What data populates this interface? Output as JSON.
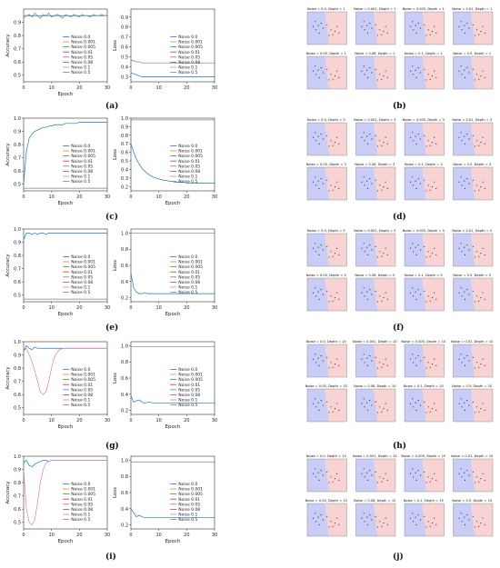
{
  "labels": [
    "(a)",
    "(b)",
    "(c)",
    "(d)",
    "(e)",
    "(f)",
    "(g)",
    "(h)",
    "(i)",
    "(j)"
  ],
  "legend": [
    "Noise 0.0",
    "Noise 0.001",
    "Noise 0.005",
    "Noise 0.01",
    "Noise 0.05",
    "Noise 0.08",
    "Noise 0.1",
    "Noise 0.5"
  ],
  "colors": [
    "#1f77b4",
    "#ff7f0e",
    "#2ca02c",
    "#d62728",
    "#9467bd",
    "#8c564b",
    "#e377c2",
    "#7f7f7f"
  ],
  "grid_depths": [
    1,
    3,
    5,
    10,
    15
  ],
  "grid_noises": [
    "0.0",
    "0.001",
    "0.005",
    "0.01",
    "0.05",
    "0.08",
    "0.1",
    "0.5"
  ],
  "chart_data": [
    {
      "id": "a",
      "type": "line",
      "xlabel": "Epoch",
      "ylabel": "Accuracy",
      "xlim": [
        0,
        30
      ],
      "ylim": [
        0.45,
        1.0
      ],
      "yticks": [
        0.5,
        0.6,
        0.7,
        0.8,
        0.9
      ],
      "xticks": [
        0,
        10,
        20,
        30
      ],
      "series": [
        {
          "name": "Noise 0.0",
          "values": [
            0.95,
            0.95,
            0.95,
            0.95,
            0.95,
            0.95,
            0.95,
            0.95,
            0.95,
            0.95,
            0.95,
            0.95,
            0.95,
            0.95,
            0.95,
            0.95,
            0.95,
            0.95,
            0.95,
            0.95,
            0.95,
            0.95,
            0.95,
            0.95,
            0.95,
            0.95,
            0.95,
            0.95,
            0.95,
            0.95,
            0.95
          ]
        },
        {
          "name": "Noise 0.5",
          "values": [
            0.93,
            0.95,
            0.96,
            0.94,
            0.97,
            0.95,
            0.93,
            0.96,
            0.95,
            0.97,
            0.94,
            0.95,
            0.96,
            0.95,
            0.93,
            0.96,
            0.95,
            0.94,
            0.96,
            0.95,
            0.94,
            0.96,
            0.95,
            0.95,
            0.94,
            0.96,
            0.95,
            0.95,
            0.96,
            0.95,
            0.95
          ]
        }
      ]
    },
    {
      "id": "b",
      "type": "line",
      "xlabel": "",
      "ylabel": "Loss",
      "xlim": [
        0,
        30
      ],
      "ylim": [
        0.25,
        0.98
      ],
      "yticks": [
        0.3,
        0.4,
        0.5,
        0.6,
        0.7,
        0.8,
        0.9
      ],
      "xticks": [
        0,
        10,
        20,
        30
      ],
      "series": [
        {
          "name": "Noise 0.0",
          "values": [
            0.34,
            0.33,
            0.32,
            0.31,
            0.3,
            0.3,
            0.3,
            0.3,
            0.3,
            0.3,
            0.3,
            0.3,
            0.3,
            0.3,
            0.3,
            0.3,
            0.3,
            0.3,
            0.3,
            0.3,
            0.3,
            0.3,
            0.3,
            0.3,
            0.3,
            0.3,
            0.3,
            0.3,
            0.3,
            0.3,
            0.3
          ]
        },
        {
          "name": "Noise 0.5",
          "values": [
            0.47,
            0.46,
            0.45,
            0.45,
            0.44,
            0.44,
            0.44,
            0.44,
            0.44,
            0.44,
            0.44,
            0.44,
            0.44,
            0.44,
            0.44,
            0.44,
            0.44,
            0.44,
            0.44,
            0.44,
            0.44,
            0.44,
            0.44,
            0.44,
            0.44,
            0.44,
            0.44,
            0.44,
            0.44,
            0.44,
            0.44
          ]
        }
      ]
    },
    {
      "id": "c",
      "type": "line",
      "xlabel": "Epoch",
      "ylabel": "Accuracy",
      "xlim": [
        0,
        30
      ],
      "ylim": [
        0.45,
        1.0
      ],
      "yticks": [
        0.5,
        0.6,
        0.7,
        0.8,
        0.9,
        1.0
      ],
      "xticks": [
        0,
        10,
        20,
        30
      ],
      "series": [
        {
          "name": "Noise 0.0",
          "values": [
            0.5,
            0.75,
            0.85,
            0.88,
            0.9,
            0.91,
            0.92,
            0.93,
            0.93,
            0.94,
            0.94,
            0.95,
            0.95,
            0.95,
            0.95,
            0.96,
            0.96,
            0.96,
            0.96,
            0.96,
            0.97,
            0.97,
            0.97,
            0.97,
            0.97,
            0.97,
            0.97,
            0.97,
            0.97,
            0.97,
            0.97
          ]
        },
        {
          "name": "Noise 0.5",
          "values": [
            0.47,
            0.47,
            0.47,
            0.47,
            0.47,
            0.47,
            0.47,
            0.47,
            0.47,
            0.47,
            0.47,
            0.47,
            0.47,
            0.47,
            0.47,
            0.47,
            0.47,
            0.47,
            0.47,
            0.47,
            0.47,
            0.47,
            0.47,
            0.47,
            0.47,
            0.47,
            0.47,
            0.47,
            0.47,
            0.47,
            0.47
          ]
        }
      ]
    },
    {
      "id": "d",
      "type": "line",
      "xlabel": "Epoch",
      "ylabel": "Loss",
      "xlim": [
        0,
        30
      ],
      "ylim": [
        0.15,
        1.0
      ],
      "yticks": [
        0.2,
        0.3,
        0.4,
        0.5,
        0.6,
        0.7,
        0.8,
        0.9,
        1.0
      ],
      "xticks": [
        0,
        10,
        20,
        30
      ],
      "series": [
        {
          "name": "Noise 0.0",
          "values": [
            0.7,
            0.6,
            0.52,
            0.46,
            0.41,
            0.38,
            0.35,
            0.33,
            0.31,
            0.3,
            0.29,
            0.28,
            0.27,
            0.27,
            0.26,
            0.26,
            0.25,
            0.25,
            0.25,
            0.25,
            0.24,
            0.24,
            0.24,
            0.24,
            0.24,
            0.24,
            0.24,
            0.24,
            0.24,
            0.24,
            0.24
          ]
        },
        {
          "name": "Noise 0.5",
          "values": [
            0.98,
            0.98,
            0.98,
            0.98,
            0.98,
            0.98,
            0.98,
            0.98,
            0.98,
            0.98,
            0.98,
            0.98,
            0.98,
            0.98,
            0.98,
            0.98,
            0.98,
            0.98,
            0.98,
            0.98,
            0.98,
            0.98,
            0.98,
            0.98,
            0.98,
            0.98,
            0.98,
            0.98,
            0.98,
            0.98,
            0.98
          ]
        }
      ]
    },
    {
      "id": "e",
      "type": "line",
      "xlabel": "Epoch",
      "ylabel": "Accuracy",
      "xlim": [
        0,
        30
      ],
      "ylim": [
        0.45,
        1.0
      ],
      "yticks": [
        0.5,
        0.6,
        0.7,
        0.8,
        0.9,
        1.0
      ],
      "xticks": [
        0,
        10,
        20,
        30
      ],
      "series": [
        {
          "name": "Noise 0.0",
          "values": [
            0.92,
            0.97,
            0.97,
            0.96,
            0.97,
            0.96,
            0.97,
            0.97,
            0.96,
            0.97,
            0.97,
            0.97,
            0.97,
            0.97,
            0.97,
            0.97,
            0.97,
            0.97,
            0.97,
            0.97,
            0.97,
            0.97,
            0.97,
            0.97,
            0.97,
            0.97,
            0.97,
            0.97,
            0.97,
            0.97,
            0.97
          ]
        },
        {
          "name": "Noise 0.5",
          "values": [
            0.47,
            0.47,
            0.47,
            0.47,
            0.47,
            0.47,
            0.47,
            0.47,
            0.47,
            0.47,
            0.47,
            0.47,
            0.47,
            0.47,
            0.47,
            0.47,
            0.47,
            0.47,
            0.47,
            0.47,
            0.47,
            0.47,
            0.47,
            0.47,
            0.47,
            0.47,
            0.47,
            0.47,
            0.47,
            0.47,
            0.47
          ]
        }
      ]
    },
    {
      "id": "f",
      "type": "line",
      "xlabel": "Epoch",
      "ylabel": "Loss",
      "xlim": [
        0,
        30
      ],
      "ylim": [
        0.15,
        1.05
      ],
      "yticks": [
        0.2,
        0.4,
        0.6,
        0.8,
        1.0
      ],
      "xticks": [
        0,
        10,
        20,
        30
      ],
      "series": [
        {
          "name": "Noise 0.0",
          "values": [
            0.5,
            0.32,
            0.27,
            0.25,
            0.25,
            0.26,
            0.25,
            0.25,
            0.25,
            0.25,
            0.25,
            0.25,
            0.25,
            0.25,
            0.25,
            0.25,
            0.25,
            0.25,
            0.25,
            0.25,
            0.25,
            0.25,
            0.25,
            0.25,
            0.25,
            0.25,
            0.25,
            0.25,
            0.25,
            0.25,
            0.25
          ]
        },
        {
          "name": "Noise 0.5",
          "values": [
            1.0,
            1.0,
            1.0,
            1.0,
            1.0,
            1.0,
            1.0,
            1.0,
            1.0,
            1.0,
            1.0,
            1.0,
            1.0,
            1.0,
            1.0,
            1.0,
            1.0,
            1.0,
            1.0,
            1.0,
            1.0,
            1.0,
            1.0,
            1.0,
            1.0,
            1.0,
            1.0,
            1.0,
            1.0,
            1.0,
            1.0
          ]
        }
      ]
    },
    {
      "id": "g",
      "type": "line",
      "xlabel": "Epoch",
      "ylabel": "Accuracy",
      "xlim": [
        0,
        30
      ],
      "ylim": [
        0.45,
        1.0
      ],
      "yticks": [
        0.5,
        0.6,
        0.7,
        0.8,
        0.9,
        1.0
      ],
      "xticks": [
        0,
        10,
        20,
        30
      ],
      "series": [
        {
          "name": "Noise 0.0",
          "values": [
            0.93,
            0.97,
            0.95,
            0.94,
            0.96,
            0.95,
            0.95,
            0.95,
            0.95,
            0.95,
            0.95,
            0.95,
            0.95,
            0.95,
            0.95,
            0.95,
            0.95,
            0.95,
            0.95,
            0.95,
            0.95,
            0.95,
            0.95,
            0.95,
            0.95,
            0.95,
            0.95,
            0.95,
            0.95,
            0.95,
            0.95
          ]
        },
        {
          "name": "Noise 0.1",
          "values": [
            0.93,
            0.95,
            0.9,
            0.85,
            0.78,
            0.7,
            0.62,
            0.6,
            0.62,
            0.7,
            0.8,
            0.88,
            0.92,
            0.94,
            0.95,
            0.95,
            0.95,
            0.95,
            0.95,
            0.95,
            0.95,
            0.95,
            0.95,
            0.95,
            0.95,
            0.95,
            0.95,
            0.95,
            0.95,
            0.95,
            0.95
          ]
        }
      ]
    },
    {
      "id": "h",
      "type": "line",
      "xlabel": "Epoch",
      "ylabel": "Loss",
      "xlim": [
        0,
        30
      ],
      "ylim": [
        0.15,
        1.05
      ],
      "yticks": [
        0.2,
        0.4,
        0.6,
        0.8,
        1.0
      ],
      "xticks": [
        0,
        10,
        20,
        30
      ],
      "series": [
        {
          "name": "Noise 0.0",
          "values": [
            0.38,
            0.3,
            0.32,
            0.33,
            0.3,
            0.29,
            0.3,
            0.3,
            0.29,
            0.29,
            0.29,
            0.29,
            0.29,
            0.29,
            0.29,
            0.29,
            0.29,
            0.29,
            0.29,
            0.29,
            0.29,
            0.29,
            0.29,
            0.29,
            0.29,
            0.29,
            0.29,
            0.29,
            0.29,
            0.29,
            0.29
          ]
        },
        {
          "name": "Noise 0.5",
          "values": [
            0.99,
            0.99,
            0.99,
            0.99,
            0.99,
            0.99,
            0.99,
            0.99,
            0.99,
            0.99,
            0.99,
            0.99,
            0.99,
            0.99,
            0.99,
            0.99,
            0.99,
            0.99,
            0.99,
            0.99,
            0.99,
            0.99,
            0.99,
            0.99,
            0.99,
            0.99,
            0.99,
            0.99,
            0.99,
            0.99,
            0.99
          ]
        }
      ]
    },
    {
      "id": "i",
      "type": "line",
      "xlabel": "Epoch",
      "ylabel": "Accuracy",
      "xlim": [
        0,
        30
      ],
      "ylim": [
        0.45,
        1.0
      ],
      "yticks": [
        0.5,
        0.6,
        0.7,
        0.8,
        0.9,
        1.0
      ],
      "xticks": [
        0,
        10,
        20,
        30
      ],
      "series": [
        {
          "name": "Noise 0.0",
          "values": [
            0.95,
            0.97,
            0.93,
            0.92,
            0.94,
            0.95,
            0.96,
            0.97,
            0.97,
            0.96,
            0.97,
            0.97,
            0.97,
            0.97,
            0.97,
            0.97,
            0.97,
            0.97,
            0.97,
            0.97,
            0.97,
            0.97,
            0.97,
            0.97,
            0.97,
            0.97,
            0.97,
            0.97,
            0.97,
            0.97,
            0.97
          ]
        },
        {
          "name": "Noise 0.1",
          "values": [
            0.9,
            0.6,
            0.5,
            0.48,
            0.52,
            0.65,
            0.8,
            0.9,
            0.95,
            0.96,
            0.97,
            0.97,
            0.97,
            0.97,
            0.97,
            0.97,
            0.97,
            0.97,
            0.97,
            0.97,
            0.97,
            0.97,
            0.97,
            0.97,
            0.97,
            0.97,
            0.97,
            0.97,
            0.97,
            0.97,
            0.97
          ]
        }
      ]
    },
    {
      "id": "j",
      "type": "line",
      "xlabel": "Epoch",
      "ylabel": "Loss",
      "xlim": [
        0,
        30
      ],
      "ylim": [
        0.15,
        1.05
      ],
      "yticks": [
        0.2,
        0.4,
        0.6,
        0.8,
        1.0
      ],
      "xticks": [
        0,
        10,
        20,
        30
      ],
      "series": [
        {
          "name": "Noise 0.0",
          "values": [
            0.4,
            0.35,
            0.3,
            0.32,
            0.3,
            0.29,
            0.29,
            0.29,
            0.29,
            0.29,
            0.29,
            0.29,
            0.29,
            0.29,
            0.29,
            0.29,
            0.29,
            0.29,
            0.29,
            0.29,
            0.29,
            0.29,
            0.29,
            0.29,
            0.29,
            0.29,
            0.29,
            0.29,
            0.29,
            0.29,
            0.29
          ]
        },
        {
          "name": "Noise 0.5",
          "values": [
            0.98,
            0.98,
            0.98,
            0.98,
            0.98,
            0.98,
            0.98,
            0.98,
            0.98,
            0.98,
            0.98,
            0.98,
            0.98,
            0.98,
            0.98,
            0.98,
            0.98,
            0.98,
            0.98,
            0.98,
            0.98,
            0.98,
            0.98,
            0.98,
            0.98,
            0.98,
            0.98,
            0.98,
            0.98,
            0.98,
            0.98
          ]
        }
      ]
    }
  ]
}
